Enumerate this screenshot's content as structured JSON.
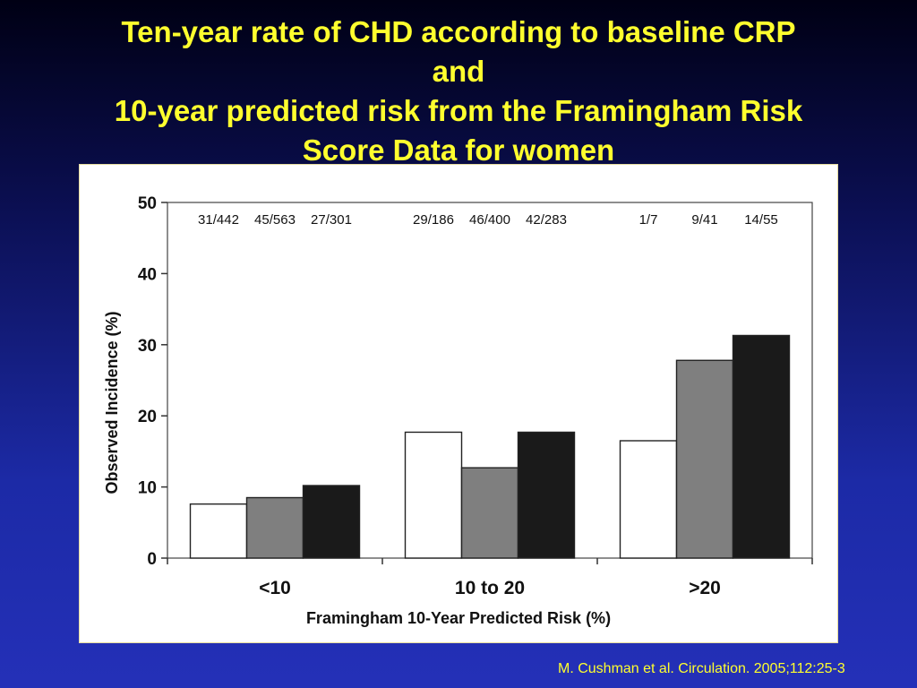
{
  "slide": {
    "title_lines": [
      "Ten-year  rate of  CHD according  to  baseline  CRP",
      "and",
      "10-year predicted risk from the Framingham Risk",
      "Score Data for women"
    ],
    "citation": "M. Cushman et al. Circulation. 2005;112:25-3"
  },
  "colors": {
    "title": "#ffff2e",
    "bar_white": "#ffffff",
    "bar_gray": "#7f7f7f",
    "bar_black": "#1a1a1a"
  },
  "chart_data": {
    "type": "bar",
    "title": "",
    "xlabel": "Framingham 10-Year Predicted Risk (%)",
    "ylabel": "Observed Incidence (%)",
    "ylim": [
      0,
      50
    ],
    "yticks": [
      0,
      10,
      20,
      30,
      40,
      50
    ],
    "grid": false,
    "legend": "none",
    "categories": [
      "<10",
      "10 to 20",
      ">20"
    ],
    "series": [
      {
        "color": "#ffffff",
        "values": [
          7.6,
          17.7,
          16.5
        ],
        "labels": [
          "31/442",
          "29/186",
          "1/7"
        ]
      },
      {
        "color": "#7f7f7f",
        "values": [
          8.5,
          12.7,
          27.8
        ],
        "labels": [
          "45/563",
          "46/400",
          "9/41"
        ]
      },
      {
        "color": "#1a1a1a",
        "values": [
          10.2,
          17.7,
          31.3
        ],
        "labels": [
          "27/301",
          "42/283",
          "14/55"
        ]
      }
    ]
  }
}
